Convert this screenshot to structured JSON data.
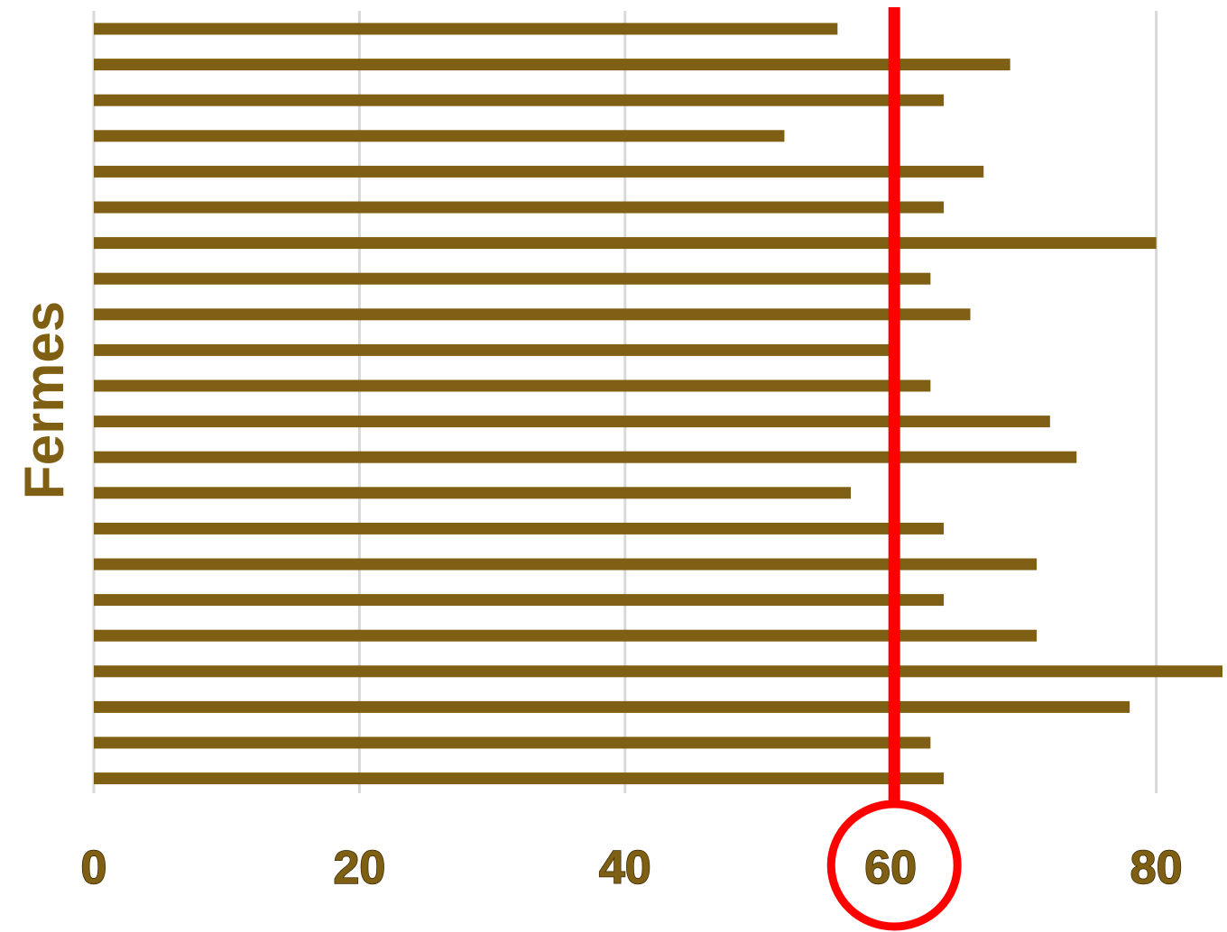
{
  "chart_data": {
    "type": "bar",
    "orientation": "horizontal",
    "ylabel": "Fermes",
    "xlabel": "",
    "xlim": [
      0,
      85
    ],
    "x_ticks": [
      "0",
      "20",
      "40",
      "60",
      "80"
    ],
    "grid": true,
    "bar_color": "#7f5f13",
    "values": [
      56,
      69,
      64,
      52,
      67,
      64,
      80,
      63,
      66,
      60,
      63,
      72,
      74,
      57,
      64,
      71,
      64,
      71,
      85,
      78,
      63,
      64
    ],
    "reference_line": {
      "value": 60,
      "color": "#ff0000",
      "highlighted_tick": "60"
    }
  }
}
